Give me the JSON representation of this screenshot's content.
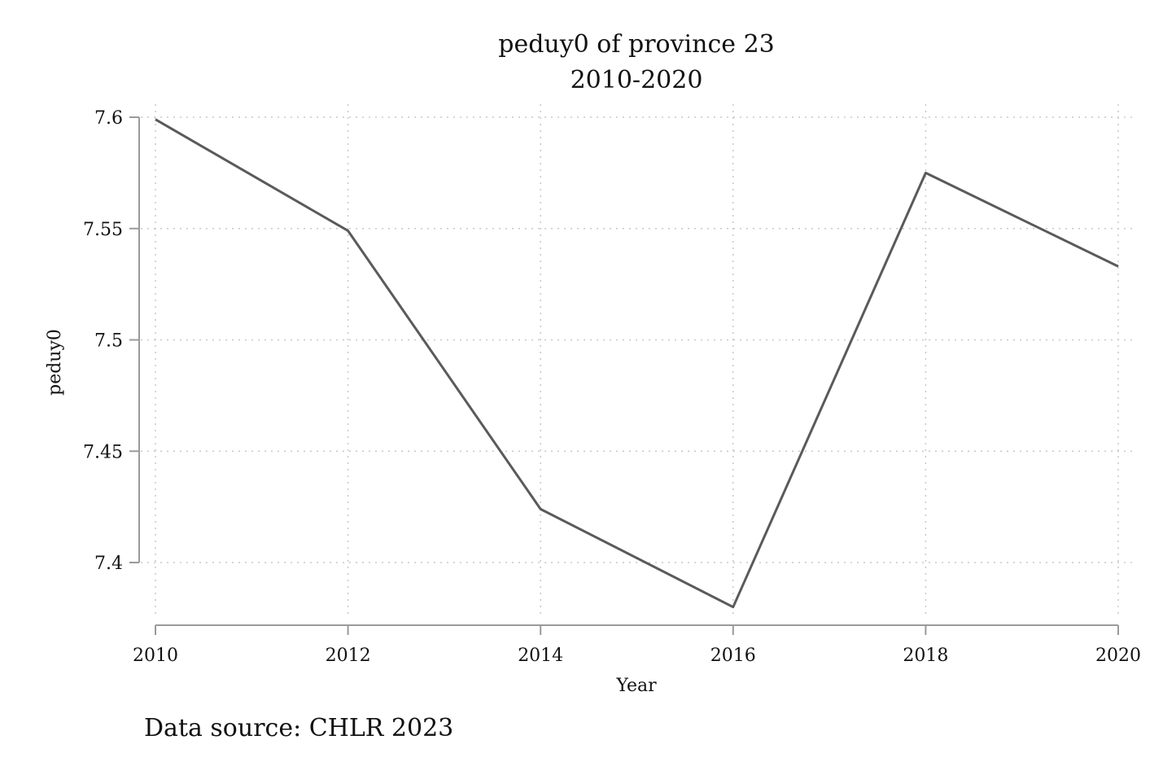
{
  "chart_data": {
    "type": "line",
    "title": "peduy0 of province 23",
    "subtitle": "2010-2020",
    "xlabel": "Year",
    "ylabel": "peduy0",
    "x": [
      2010,
      2012,
      2014,
      2016,
      2018,
      2020
    ],
    "series": [
      {
        "values": [
          7.599,
          7.549,
          7.424,
          7.38,
          7.575,
          7.533
        ]
      }
    ],
    "xlim": [
      2010,
      2020
    ],
    "ylim": [
      7.38,
      7.6
    ],
    "x_ticks": [
      2010,
      2012,
      2014,
      2016,
      2018,
      2020
    ],
    "x_tick_labels": [
      "2010",
      "2012",
      "2014",
      "2016",
      "2018",
      "2020"
    ],
    "y_ticks": [
      7.4,
      7.45,
      7.5,
      7.55,
      7.6
    ],
    "y_tick_labels": [
      "7.4",
      "7.45",
      "7.5",
      "7.55",
      "7.6"
    ],
    "grid": true,
    "line_color": "#5a5a5a",
    "note": "Data source: CHLR 2023"
  }
}
